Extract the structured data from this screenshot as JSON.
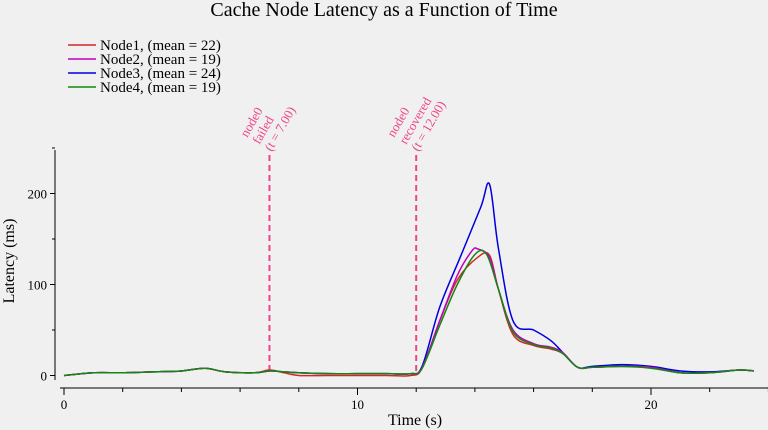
{
  "chart_data": {
    "type": "line",
    "title": "Cache Node Latency as a Function of Time",
    "xlabel": "Time (s)",
    "ylabel": "Latency (ms)",
    "xlim": [
      0,
      24
    ],
    "ylim": [
      -5,
      250
    ],
    "x_ticks": [
      0,
      10,
      20
    ],
    "y_ticks": [
      0,
      100,
      200
    ],
    "grid": false,
    "legend_position": "top-left",
    "series": [
      {
        "name": "Node1, (mean = 22)",
        "color": "#d62728",
        "points": [
          [
            0,
            0
          ],
          [
            1,
            3
          ],
          [
            2,
            3
          ],
          [
            3,
            4
          ],
          [
            4,
            5
          ],
          [
            4.8,
            8
          ],
          [
            5.5,
            4
          ],
          [
            6.5,
            3
          ],
          [
            7,
            6
          ],
          [
            7.5,
            3
          ],
          [
            8,
            0
          ],
          [
            9,
            0
          ],
          [
            10,
            0
          ],
          [
            11,
            0
          ],
          [
            11.8,
            0
          ],
          [
            12.2,
            8
          ],
          [
            12.8,
            60
          ],
          [
            13.4,
            105
          ],
          [
            14.1,
            130
          ],
          [
            14.5,
            132
          ],
          [
            14.8,
            95
          ],
          [
            15.3,
            45
          ],
          [
            16,
            33
          ],
          [
            16.6,
            29
          ],
          [
            17,
            24
          ],
          [
            17.5,
            9
          ],
          [
            18,
            9
          ],
          [
            19,
            10
          ],
          [
            20,
            9
          ],
          [
            21,
            3
          ],
          [
            22,
            3
          ],
          [
            23,
            6
          ],
          [
            23.5,
            5
          ]
        ]
      },
      {
        "name": "Node2, (mean = 19)",
        "color": "#c000c0",
        "points": [
          [
            0,
            0
          ],
          [
            1,
            3
          ],
          [
            2,
            3
          ],
          [
            3,
            4
          ],
          [
            4,
            5
          ],
          [
            4.8,
            8
          ],
          [
            5.5,
            4
          ],
          [
            6.5,
            3
          ],
          [
            7,
            5
          ],
          [
            7.5,
            4
          ],
          [
            8,
            3
          ],
          [
            9,
            2
          ],
          [
            10,
            2
          ],
          [
            11,
            2
          ],
          [
            11.8,
            2
          ],
          [
            12.2,
            8
          ],
          [
            12.8,
            60
          ],
          [
            13.4,
            110
          ],
          [
            13.9,
            137
          ],
          [
            14.1,
            139
          ],
          [
            14.5,
            130
          ],
          [
            14.8,
            95
          ],
          [
            15.3,
            50
          ],
          [
            16,
            35
          ],
          [
            16.6,
            31
          ],
          [
            17,
            25
          ],
          [
            17.5,
            9
          ],
          [
            18,
            9
          ],
          [
            19,
            10
          ],
          [
            20,
            9
          ],
          [
            21,
            3
          ],
          [
            22,
            3
          ],
          [
            23,
            6
          ],
          [
            23.5,
            5
          ]
        ]
      },
      {
        "name": "Node3, (mean = 24)",
        "color": "#0000dd",
        "points": [
          [
            0,
            0
          ],
          [
            1,
            3
          ],
          [
            2,
            3
          ],
          [
            3,
            4
          ],
          [
            4,
            5
          ],
          [
            4.8,
            8
          ],
          [
            5.5,
            4
          ],
          [
            6.5,
            3
          ],
          [
            7,
            5
          ],
          [
            7.5,
            4
          ],
          [
            8,
            3
          ],
          [
            9,
            2
          ],
          [
            10,
            2
          ],
          [
            11,
            2
          ],
          [
            11.8,
            2
          ],
          [
            12.2,
            10
          ],
          [
            12.8,
            75
          ],
          [
            13.5,
            130
          ],
          [
            14.2,
            185
          ],
          [
            14.5,
            210
          ],
          [
            14.8,
            140
          ],
          [
            15.3,
            60
          ],
          [
            16,
            50
          ],
          [
            16.6,
            38
          ],
          [
            17,
            25
          ],
          [
            17.5,
            9
          ],
          [
            18,
            10
          ],
          [
            19,
            12
          ],
          [
            20,
            10
          ],
          [
            21,
            5
          ],
          [
            22,
            4
          ],
          [
            23,
            6
          ],
          [
            23.5,
            5
          ]
        ]
      },
      {
        "name": "Node4, (mean = 19)",
        "color": "#118811",
        "points": [
          [
            0,
            0
          ],
          [
            1,
            3
          ],
          [
            2,
            3
          ],
          [
            3,
            4
          ],
          [
            4,
            5
          ],
          [
            4.8,
            8
          ],
          [
            5.5,
            4
          ],
          [
            6.5,
            3
          ],
          [
            7,
            5
          ],
          [
            7.5,
            4
          ],
          [
            8,
            3
          ],
          [
            9,
            2
          ],
          [
            10,
            2
          ],
          [
            11,
            2
          ],
          [
            11.8,
            2
          ],
          [
            12.2,
            8
          ],
          [
            12.8,
            55
          ],
          [
            13.4,
            100
          ],
          [
            14,
            133
          ],
          [
            14.4,
            133
          ],
          [
            14.8,
            95
          ],
          [
            15.3,
            48
          ],
          [
            16,
            34
          ],
          [
            16.6,
            30
          ],
          [
            17,
            24
          ],
          [
            17.5,
            9
          ],
          [
            18,
            9
          ],
          [
            19,
            10
          ],
          [
            20,
            8
          ],
          [
            21,
            3
          ],
          [
            22,
            3
          ],
          [
            23,
            6
          ],
          [
            23.5,
            5
          ]
        ]
      }
    ],
    "annotations": [
      {
        "x": 7,
        "lines": [
          "node0",
          "failed",
          "(t = 7.00)"
        ],
        "color": "#ee4488"
      },
      {
        "x": 12,
        "lines": [
          "node0",
          "recovered",
          "(t = 12.00)"
        ],
        "color": "#ee4488"
      }
    ]
  }
}
